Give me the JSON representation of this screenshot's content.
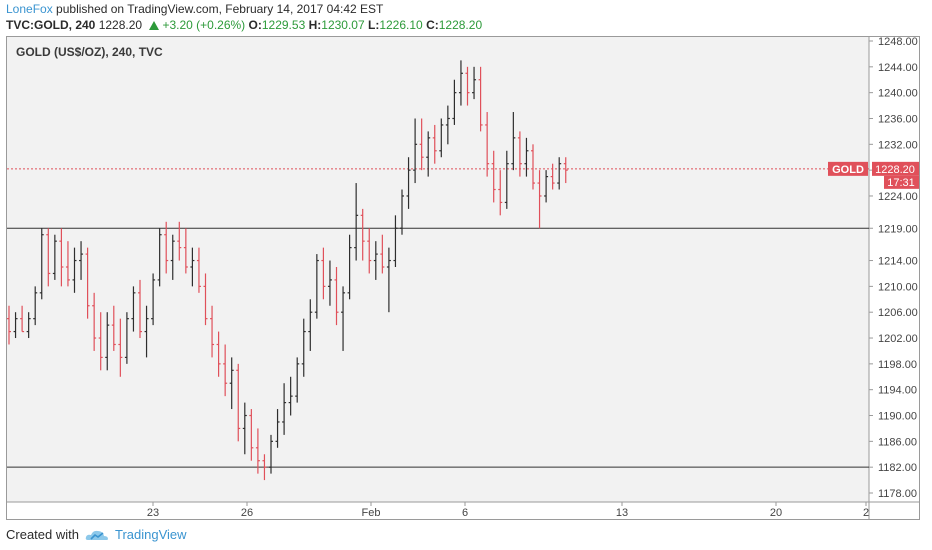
{
  "header": {
    "author": "LoneFox",
    "published": "published on TradingView.com, February 14, 2017 04:42 EST"
  },
  "quote": {
    "symbol": "TVC:GOLD, 240",
    "last": "1228.20",
    "change": "+3.20 (+0.26%)",
    "open_label": "O:",
    "open": "1229.53",
    "high_label": "H:",
    "high": "1230.07",
    "low_label": "L:",
    "low": "1226.10",
    "close_label": "C:",
    "close": "1228.20"
  },
  "chart_data": {
    "type": "ohlc",
    "title": "GOLD (US$/OZ), 240, TVC",
    "ylim": [
      1176,
      1249
    ],
    "y_ticks": [
      "1248.00",
      "1244.00",
      "1240.00",
      "1236.00",
      "1232.00",
      "1228.00",
      "1224.00",
      "1219.00",
      "1214.00",
      "1210.00",
      "1206.00",
      "1202.00",
      "1198.00",
      "1194.00",
      "1190.00",
      "1186.00",
      "1182.00",
      "1178.00"
    ],
    "x_ticks": [
      "23",
      "26",
      "Feb",
      "6",
      "13",
      "20",
      "2"
    ],
    "horizontal_lines": [
      1219.0,
      1182.0
    ],
    "last_price_line": 1228.2,
    "last_price_label": "1228.20",
    "symbol_label": "GOLD",
    "countdown": "17:31",
    "colors": {
      "up": "#2e2e2e",
      "down": "#e0505a",
      "price_line": "#e0505a",
      "hline": "#333333"
    },
    "bars": [
      {
        "o": 1205,
        "h": 1207,
        "l": 1201,
        "c": 1203
      },
      {
        "o": 1203,
        "h": 1206,
        "l": 1202,
        "c": 1205
      },
      {
        "o": 1205,
        "h": 1207,
        "l": 1203,
        "c": 1203
      },
      {
        "o": 1203,
        "h": 1206,
        "l": 1202,
        "c": 1205
      },
      {
        "o": 1205,
        "h": 1210,
        "l": 1204,
        "c": 1209
      },
      {
        "o": 1209,
        "h": 1219,
        "l": 1208,
        "c": 1218
      },
      {
        "o": 1218,
        "h": 1219,
        "l": 1210,
        "c": 1212
      },
      {
        "o": 1212,
        "h": 1218,
        "l": 1211,
        "c": 1217
      },
      {
        "o": 1217,
        "h": 1219,
        "l": 1210,
        "c": 1213
      },
      {
        "o": 1213,
        "h": 1217,
        "l": 1210,
        "c": 1211
      },
      {
        "o": 1211,
        "h": 1216,
        "l": 1209,
        "c": 1214
      },
      {
        "o": 1214,
        "h": 1217,
        "l": 1211,
        "c": 1215
      },
      {
        "o": 1215,
        "h": 1216,
        "l": 1205,
        "c": 1207
      },
      {
        "o": 1207,
        "h": 1209,
        "l": 1200,
        "c": 1202
      },
      {
        "o": 1202,
        "h": 1206,
        "l": 1197,
        "c": 1199
      },
      {
        "o": 1199,
        "h": 1206,
        "l": 1197,
        "c": 1204
      },
      {
        "o": 1204,
        "h": 1207,
        "l": 1200,
        "c": 1201
      },
      {
        "o": 1201,
        "h": 1205,
        "l": 1196,
        "c": 1199
      },
      {
        "o": 1199,
        "h": 1206,
        "l": 1198,
        "c": 1205
      },
      {
        "o": 1205,
        "h": 1210,
        "l": 1203,
        "c": 1209
      },
      {
        "o": 1209,
        "h": 1211,
        "l": 1202,
        "c": 1203
      },
      {
        "o": 1203,
        "h": 1207,
        "l": 1199,
        "c": 1205
      },
      {
        "o": 1205,
        "h": 1212,
        "l": 1204,
        "c": 1211
      },
      {
        "o": 1211,
        "h": 1219,
        "l": 1210,
        "c": 1218
      },
      {
        "o": 1218,
        "h": 1220,
        "l": 1212,
        "c": 1214
      },
      {
        "o": 1214,
        "h": 1218,
        "l": 1211,
        "c": 1217
      },
      {
        "o": 1217,
        "h": 1220,
        "l": 1214,
        "c": 1216
      },
      {
        "o": 1216,
        "h": 1219,
        "l": 1212,
        "c": 1213
      },
      {
        "o": 1213,
        "h": 1216,
        "l": 1210,
        "c": 1214
      },
      {
        "o": 1214,
        "h": 1216,
        "l": 1209,
        "c": 1210
      },
      {
        "o": 1210,
        "h": 1212,
        "l": 1204,
        "c": 1205
      },
      {
        "o": 1205,
        "h": 1207,
        "l": 1199,
        "c": 1201
      },
      {
        "o": 1201,
        "h": 1203,
        "l": 1196,
        "c": 1198
      },
      {
        "o": 1198,
        "h": 1201,
        "l": 1193,
        "c": 1195
      },
      {
        "o": 1195,
        "h": 1199,
        "l": 1191,
        "c": 1197
      },
      {
        "o": 1197,
        "h": 1198,
        "l": 1186,
        "c": 1188
      },
      {
        "o": 1188,
        "h": 1192,
        "l": 1184,
        "c": 1190
      },
      {
        "o": 1190,
        "h": 1191,
        "l": 1183,
        "c": 1185
      },
      {
        "o": 1185,
        "h": 1188,
        "l": 1181,
        "c": 1183
      },
      {
        "o": 1183,
        "h": 1184,
        "l": 1180,
        "c": 1182
      },
      {
        "o": 1182,
        "h": 1187,
        "l": 1181,
        "c": 1186
      },
      {
        "o": 1186,
        "h": 1191,
        "l": 1185,
        "c": 1189
      },
      {
        "o": 1189,
        "h": 1195,
        "l": 1187,
        "c": 1192
      },
      {
        "o": 1192,
        "h": 1196,
        "l": 1190,
        "c": 1193
      },
      {
        "o": 1193,
        "h": 1199,
        "l": 1192,
        "c": 1198
      },
      {
        "o": 1198,
        "h": 1205,
        "l": 1196,
        "c": 1203
      },
      {
        "o": 1203,
        "h": 1208,
        "l": 1200,
        "c": 1206
      },
      {
        "o": 1206,
        "h": 1215,
        "l": 1205,
        "c": 1214
      },
      {
        "o": 1214,
        "h": 1216,
        "l": 1208,
        "c": 1210
      },
      {
        "o": 1210,
        "h": 1214,
        "l": 1207,
        "c": 1211
      },
      {
        "o": 1211,
        "h": 1213,
        "l": 1204,
        "c": 1206
      },
      {
        "o": 1206,
        "h": 1210,
        "l": 1200,
        "c": 1209
      },
      {
        "o": 1209,
        "h": 1218,
        "l": 1208,
        "c": 1216
      },
      {
        "o": 1216,
        "h": 1226,
        "l": 1214,
        "c": 1221
      },
      {
        "o": 1221,
        "h": 1222,
        "l": 1214,
        "c": 1217
      },
      {
        "o": 1217,
        "h": 1219,
        "l": 1212,
        "c": 1214
      },
      {
        "o": 1214,
        "h": 1217,
        "l": 1211,
        "c": 1215
      },
      {
        "o": 1215,
        "h": 1218,
        "l": 1212,
        "c": 1213
      },
      {
        "o": 1213,
        "h": 1216,
        "l": 1206,
        "c": 1214
      },
      {
        "o": 1214,
        "h": 1221,
        "l": 1213,
        "c": 1219
      },
      {
        "o": 1219,
        "h": 1225,
        "l": 1218,
        "c": 1224
      },
      {
        "o": 1224,
        "h": 1230,
        "l": 1222,
        "c": 1228
      },
      {
        "o": 1228,
        "h": 1236,
        "l": 1226,
        "c": 1232
      },
      {
        "o": 1232,
        "h": 1236,
        "l": 1228,
        "c": 1230
      },
      {
        "o": 1230,
        "h": 1234,
        "l": 1227,
        "c": 1233
      },
      {
        "o": 1233,
        "h": 1235,
        "l": 1229,
        "c": 1231
      },
      {
        "o": 1231,
        "h": 1236,
        "l": 1230,
        "c": 1235
      },
      {
        "o": 1235,
        "h": 1238,
        "l": 1232,
        "c": 1236
      },
      {
        "o": 1236,
        "h": 1242,
        "l": 1235,
        "c": 1240
      },
      {
        "o": 1240,
        "h": 1245,
        "l": 1238,
        "c": 1243
      },
      {
        "o": 1243,
        "h": 1244,
        "l": 1238,
        "c": 1240
      },
      {
        "o": 1240,
        "h": 1244,
        "l": 1239,
        "c": 1242
      },
      {
        "o": 1242,
        "h": 1244,
        "l": 1234,
        "c": 1235
      },
      {
        "o": 1235,
        "h": 1237,
        "l": 1227,
        "c": 1229
      },
      {
        "o": 1229,
        "h": 1231,
        "l": 1223,
        "c": 1225
      },
      {
        "o": 1225,
        "h": 1228,
        "l": 1221,
        "c": 1223
      },
      {
        "o": 1223,
        "h": 1231,
        "l": 1222,
        "c": 1229
      },
      {
        "o": 1229,
        "h": 1237,
        "l": 1228,
        "c": 1233
      },
      {
        "o": 1233,
        "h": 1234,
        "l": 1227,
        "c": 1229
      },
      {
        "o": 1229,
        "h": 1233,
        "l": 1227,
        "c": 1231
      },
      {
        "o": 1231,
        "h": 1232,
        "l": 1225,
        "c": 1226
      },
      {
        "o": 1226,
        "h": 1228,
        "l": 1219,
        "c": 1224
      },
      {
        "o": 1224,
        "h": 1228,
        "l": 1223,
        "c": 1227
      },
      {
        "o": 1227,
        "h": 1229,
        "l": 1225,
        "c": 1226
      },
      {
        "o": 1226,
        "h": 1230,
        "l": 1225,
        "c": 1229
      },
      {
        "o": 1229,
        "h": 1230,
        "l": 1226,
        "c": 1228
      }
    ]
  },
  "footer": {
    "created_with": "Created with",
    "brand": "TradingView"
  }
}
